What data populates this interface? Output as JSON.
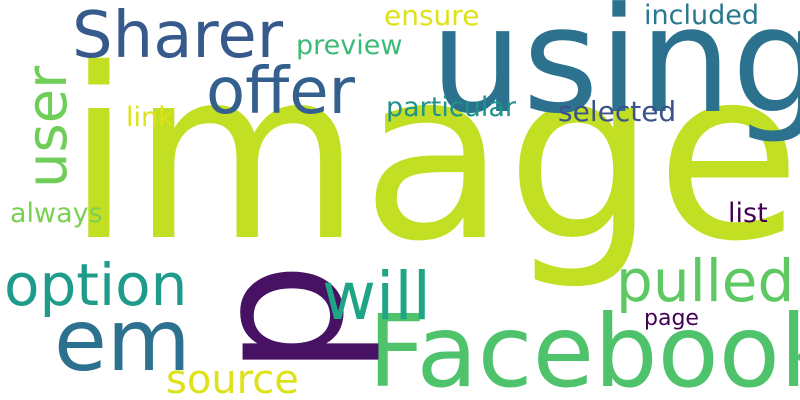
{
  "words": {
    "image": {
      "text": "image",
      "color": "#c2df23"
    },
    "using": {
      "text": "using",
      "color": "#2c728e"
    },
    "facebook": {
      "text": "Facebook",
      "color": "#4ec36b"
    },
    "p": {
      "text": "p",
      "color": "#471164"
    },
    "em": {
      "text": "em",
      "color": "#2c728e"
    },
    "sharer": {
      "text": "Sharer",
      "color": "#375a8c"
    },
    "offer": {
      "text": "offer",
      "color": "#34608d"
    },
    "user": {
      "text": "user",
      "color": "#6ece58"
    },
    "option": {
      "text": "option",
      "color": "#1e9b8a"
    },
    "will": {
      "text": "will",
      "color": "#20a486"
    },
    "pulled": {
      "text": "pulled",
      "color": "#5ec962"
    },
    "source": {
      "text": "source",
      "color": "#dde318"
    },
    "preview": {
      "text": "preview",
      "color": "#3bbb75"
    },
    "ensure": {
      "text": "ensure",
      "color": "#dde318"
    },
    "included": {
      "text": "included",
      "color": "#2a788e"
    },
    "particular": {
      "text": "particular",
      "color": "#21918c"
    },
    "selected": {
      "text": "selected",
      "color": "#3b528b"
    },
    "link": {
      "text": "link",
      "color": "#dde318"
    },
    "always": {
      "text": "always",
      "color": "#7ad151"
    },
    "list": {
      "text": "list",
      "color": "#440154"
    },
    "page": {
      "text": "page",
      "color": "#440154"
    }
  }
}
